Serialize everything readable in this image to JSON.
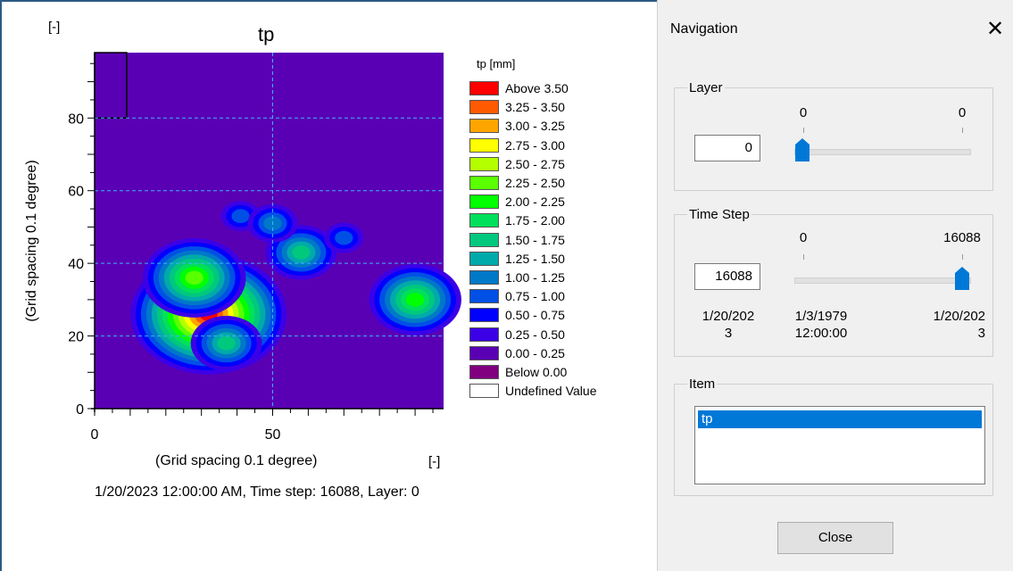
{
  "plot": {
    "unit_label_top": "[-]",
    "title": "tp",
    "y_axis_label": "(Grid spacing 0.1 degree)",
    "x_axis_label": "(Grid spacing 0.1 degree)",
    "unit_label_bottom": "[-]",
    "status_line": "1/20/2023 12:00:00 AM, Time step: 16088, Layer: 0",
    "legend_title": "tp [mm]",
    "legend": [
      {
        "label": "Above 3.50",
        "color": "#ff0000"
      },
      {
        "label": "3.25 - 3.50",
        "color": "#ff5a00"
      },
      {
        "label": "3.00 - 3.25",
        "color": "#ffa500"
      },
      {
        "label": "2.75 - 3.00",
        "color": "#ffff00"
      },
      {
        "label": "2.50 - 2.75",
        "color": "#b4ff00"
      },
      {
        "label": "2.25 - 2.50",
        "color": "#5aff00"
      },
      {
        "label": "2.00 - 2.25",
        "color": "#00ff00"
      },
      {
        "label": "1.75 - 2.00",
        "color": "#00e05a"
      },
      {
        "label": "1.50 - 1.75",
        "color": "#00c87d"
      },
      {
        "label": "1.25 - 1.50",
        "color": "#00aaaa"
      },
      {
        "label": "1.00 - 1.25",
        "color": "#0078c8"
      },
      {
        "label": "0.75 - 1.00",
        "color": "#0050e6"
      },
      {
        "label": "0.50 - 0.75",
        "color": "#0000ff"
      },
      {
        "label": "0.25 - 0.50",
        "color": "#3c00e6"
      },
      {
        "label": "0.00 - 0.25",
        "color": "#5a00b4"
      },
      {
        "label": "Below 0.00",
        "color": "#800080"
      },
      {
        "label": "Undefined Value",
        "color": "#ffffff"
      }
    ]
  },
  "chart_data": {
    "type": "heatmap",
    "title": "tp",
    "xlabel": "(Grid spacing 0.1 degree)",
    "ylabel": "(Grid spacing 0.1 degree)",
    "x_ticks": [
      0,
      50
    ],
    "y_ticks": [
      0,
      20,
      40,
      60,
      80
    ],
    "xlim": [
      0,
      98
    ],
    "ylim": [
      0,
      98
    ],
    "grid": true,
    "background_class": "0.00 - 0.25",
    "undefined_region": {
      "x": [
        0,
        9
      ],
      "y": [
        80,
        98
      ]
    },
    "blobs": [
      {
        "x": 32,
        "y": 26,
        "peak_class": "Above 3.50"
      },
      {
        "x": 28,
        "y": 36,
        "peak_class": "2.25 - 2.50"
      },
      {
        "x": 37,
        "y": 18,
        "peak_class": "1.50 - 1.75"
      },
      {
        "x": 58,
        "y": 43,
        "peak_class": "1.50 - 1.75"
      },
      {
        "x": 90,
        "y": 30,
        "peak_class": "2.00 - 2.25"
      },
      {
        "x": 41,
        "y": 53,
        "peak_class": "0.75 - 1.00"
      },
      {
        "x": 50,
        "y": 51,
        "peak_class": "1.00 - 1.25"
      },
      {
        "x": 70,
        "y": 47,
        "peak_class": "0.75 - 1.00"
      }
    ]
  },
  "nav": {
    "title": "Navigation",
    "close_icon": "close-icon",
    "layer": {
      "label": "Layer",
      "value": "0",
      "slider_min": "0",
      "slider_max": "0",
      "position": 0
    },
    "time_step": {
      "label": "Time Step",
      "value": "16088",
      "slider_min": "0",
      "slider_max": "16088",
      "position": 1,
      "current_date_line1": "1/20/202",
      "current_date_line2": "3",
      "start_date_line1": "1/3/1979",
      "start_date_line2": "12:00:00",
      "end_date_line1": "1/20/202",
      "end_date_line2": "3"
    },
    "item": {
      "label": "Item",
      "items": [
        "tp"
      ],
      "selected": "tp"
    },
    "close_button": "Close"
  }
}
